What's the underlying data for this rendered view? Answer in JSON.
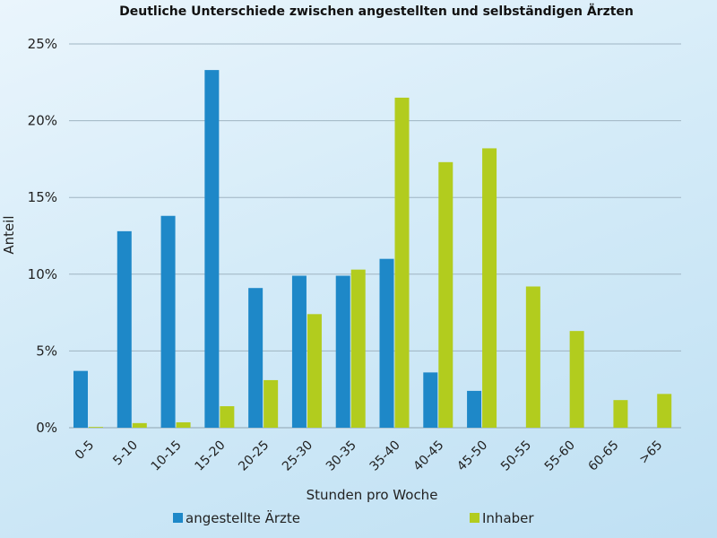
{
  "chart_data": {
    "type": "bar",
    "title": "Deutliche Unterschiede zwischen angestellten und selbständigen Ärzten",
    "xlabel": "Stunden pro Woche",
    "ylabel": "Anteil",
    "ylim": [
      0,
      25
    ],
    "yticks": [
      "0%",
      "5%",
      "10%",
      "15%",
      "20%",
      "25%"
    ],
    "grid": true,
    "legend_position": "bottom",
    "categories": [
      "0-5",
      "5-10",
      "10-15",
      "15-20",
      "20-25",
      "25-30",
      "30-35",
      "35-40",
      "40-45",
      "45-50",
      "50-55",
      "55-60",
      "60-65",
      ">65"
    ],
    "series": [
      {
        "name": "angestellte Ärzte",
        "color": "#1e88c8",
        "values": [
          3.7,
          12.8,
          13.8,
          23.3,
          9.1,
          9.9,
          9.9,
          11.0,
          3.6,
          2.4,
          0,
          0,
          0,
          0
        ]
      },
      {
        "name": "Inhaber",
        "color": "#b2cc1e",
        "values": [
          0.05,
          0.3,
          0.35,
          1.4,
          3.1,
          7.4,
          10.3,
          21.5,
          17.3,
          18.2,
          9.2,
          6.3,
          1.8,
          2.2
        ]
      }
    ]
  }
}
